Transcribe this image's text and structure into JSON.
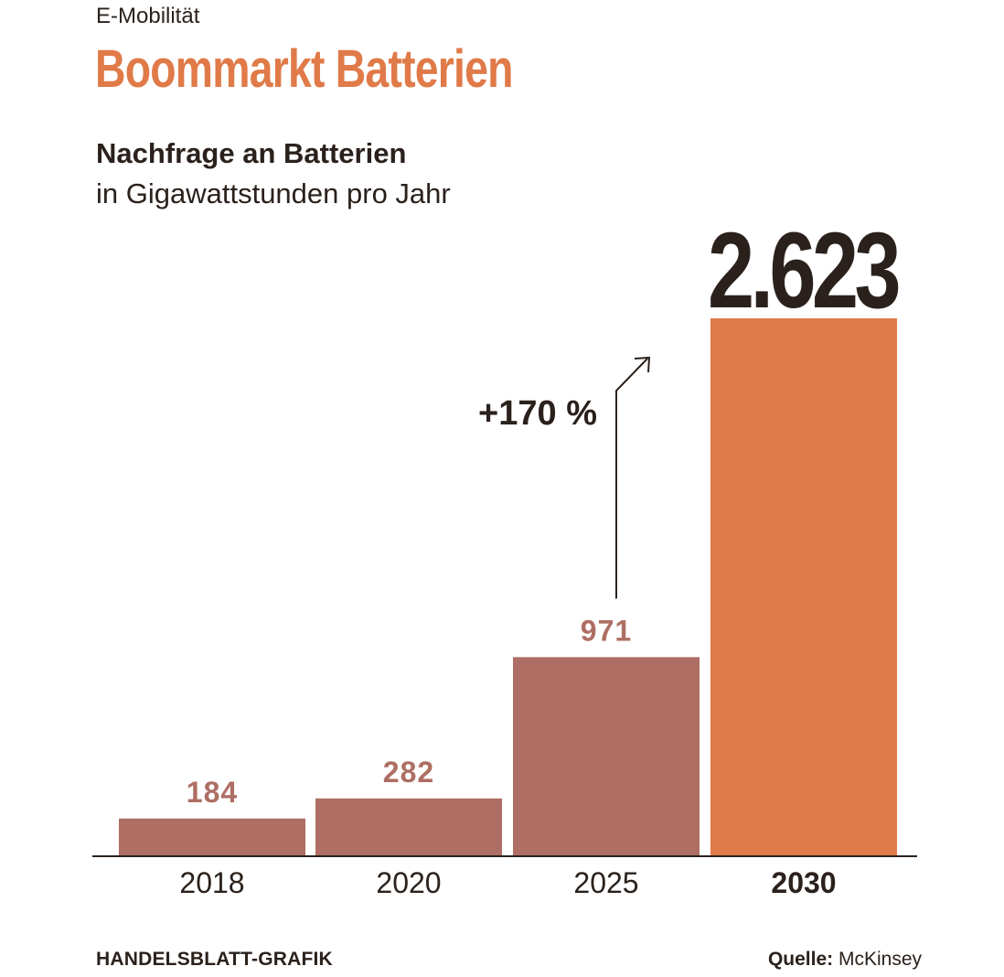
{
  "header": {
    "kicker": "E-Mobilität",
    "title": "Boommarkt Batterien"
  },
  "chart_data": {
    "type": "bar",
    "title": "Nachfrage an Batterien",
    "subtitle": "in Gigawattstunden pro Jahr",
    "categories": [
      "2018",
      "2020",
      "2025",
      "2030"
    ],
    "values": [
      184,
      282,
      971,
      2623
    ],
    "value_labels": [
      "184",
      "282",
      "971",
      "2.623"
    ],
    "highlight_index": 3,
    "annotation": "+170 %",
    "ylim": [
      0,
      2623
    ],
    "grid": false,
    "colors": {
      "bar": "#ae6e63",
      "highlight": "#e07a48",
      "value_label": "#ae6e63",
      "text": "#2b211c"
    }
  },
  "footer": {
    "credit": "HANDELSBLATT-GRAFIK",
    "source_label": "Quelle:",
    "source_value": "McKinsey"
  }
}
